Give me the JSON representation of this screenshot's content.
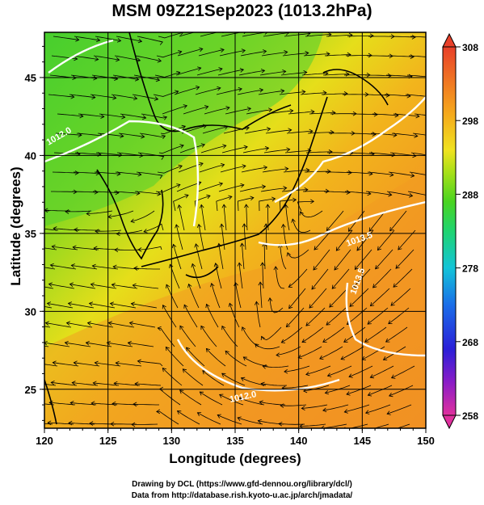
{
  "title": "MSM 09Z21Sep2023 (1013.2hPa)",
  "x_axis": {
    "label": "Longitude (degrees)",
    "range": [
      120,
      150
    ],
    "ticks": [
      "120",
      "125",
      "130",
      "135",
      "140",
      "145",
      "150"
    ]
  },
  "y_axis": {
    "label": "Latitude  (degrees)",
    "range": [
      22.5,
      47.9
    ],
    "ticks": [
      "25",
      "30",
      "35",
      "40",
      "45"
    ]
  },
  "colorbar": {
    "range": [
      258,
      308
    ],
    "ticks": [
      "308",
      "298",
      "288",
      "278",
      "268",
      "258"
    ],
    "colors": [
      "#e0309e",
      "#8a1cc7",
      "#2a1fd8",
      "#1a6ee8",
      "#13c4d8",
      "#1fd470",
      "#49d420",
      "#a8e018",
      "#f0e220",
      "#f5a81c",
      "#f07a22",
      "#e8402a"
    ]
  },
  "contour_labels": [
    "1012.0",
    "1012.0",
    "1013.5",
    "1013.5"
  ],
  "credits": {
    "line1": "Drawing by DCL (https://www.gfd-dennou.org/library/dcl/)",
    "line2": "Data from http://database.rish.kyoto-u.ac.jp/arch/jmadata/"
  }
}
